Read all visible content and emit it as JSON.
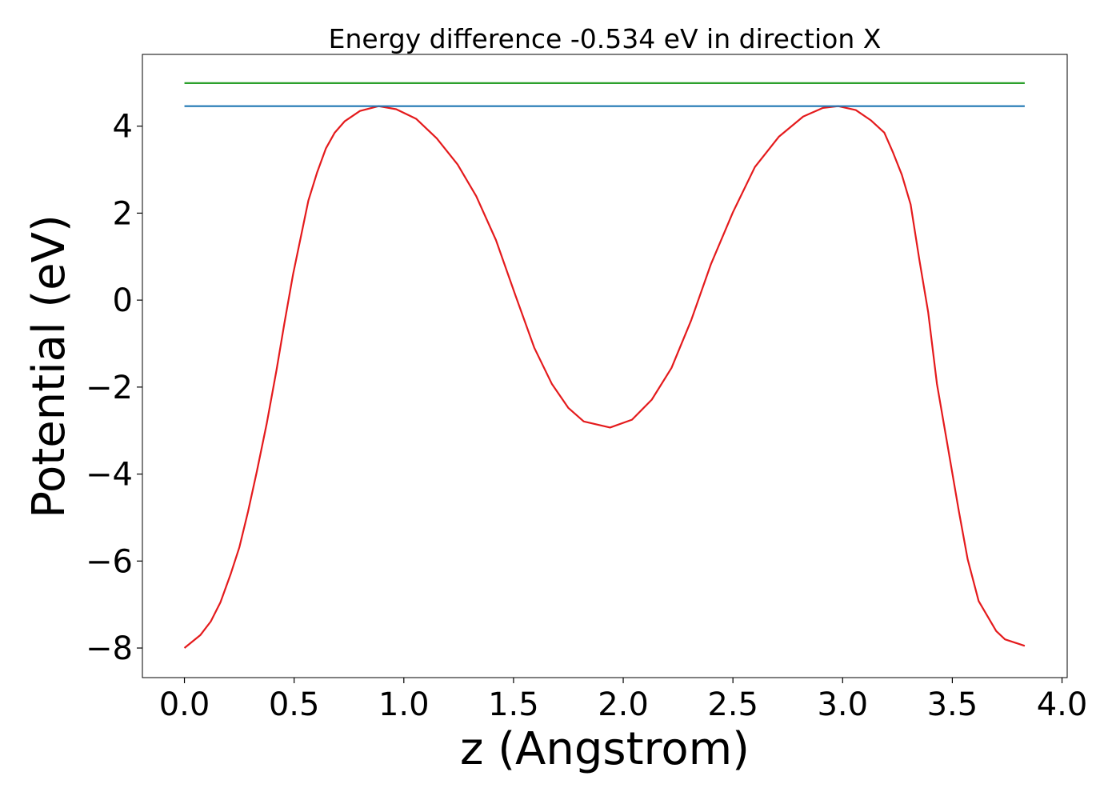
{
  "chart_data": {
    "type": "line",
    "title": "Energy difference -0.534 eV in direction X",
    "xlabel": "z (Angstrom)",
    "ylabel": "Potential (eV)",
    "xlim": [
      -0.1916,
      4.0236
    ],
    "ylim": [
      -8.68,
      5.65
    ],
    "xticks": [
      {
        "value": 0,
        "label": "0.0"
      },
      {
        "value": 0.5,
        "label": "0.5"
      },
      {
        "value": 1,
        "label": "1.0"
      },
      {
        "value": 1.5,
        "label": "1.5"
      },
      {
        "value": 2,
        "label": "2.0"
      },
      {
        "value": 2.5,
        "label": "2.5"
      },
      {
        "value": 3,
        "label": "3.0"
      },
      {
        "value": 3.5,
        "label": "3.5"
      },
      {
        "value": 4,
        "label": "4.0"
      }
    ],
    "yticks": [
      {
        "value": -8,
        "label": "−8"
      },
      {
        "value": -6,
        "label": "−6"
      },
      {
        "value": -4,
        "label": "−4"
      },
      {
        "value": -2,
        "label": "−2"
      },
      0,
      2,
      4
    ],
    "grid": false,
    "series": [
      {
        "color": "#e41a1c",
        "x": [
          0,
          0.073,
          0.12,
          0.164,
          0.21,
          0.25,
          0.29,
          0.33,
          0.375,
          0.42,
          0.455,
          0.495,
          0.565,
          0.605,
          0.645,
          0.685,
          0.73,
          0.8,
          0.885,
          0.965,
          1.056,
          1.15,
          1.245,
          1.33,
          1.42,
          1.51,
          1.595,
          1.675,
          1.75,
          1.82,
          1.94,
          2.04,
          2.13,
          2.22,
          2.31,
          2.4,
          2.5,
          2.6,
          2.71,
          2.82,
          2.91,
          2.98,
          3.06,
          3.13,
          3.19,
          3.23,
          3.27,
          3.31,
          3.35,
          3.39,
          3.43,
          3.48,
          3.53,
          3.57,
          3.62,
          3.7,
          3.74,
          3.83
        ],
        "values": [
          -8.0,
          -7.7,
          -7.39,
          -6.95,
          -6.31,
          -5.69,
          -4.86,
          -3.94,
          -2.84,
          -1.6,
          -0.55,
          0.59,
          2.29,
          2.94,
          3.49,
          3.85,
          4.11,
          4.35,
          4.46,
          4.39,
          4.17,
          3.72,
          3.12,
          2.39,
          1.38,
          0.09,
          -1.1,
          -1.93,
          -2.48,
          -2.79,
          -2.93,
          -2.75,
          -2.29,
          -1.56,
          -0.46,
          0.83,
          2.02,
          3.06,
          3.76,
          4.22,
          4.42,
          4.46,
          4.37,
          4.13,
          3.85,
          3.39,
          2.88,
          2.2,
          0.92,
          -0.28,
          -1.93,
          -3.39,
          -4.86,
          -5.96,
          -6.92,
          -7.61,
          -7.8,
          -7.95
        ]
      },
      {
        "color": "#1f77b4",
        "x": [
          0,
          3.83
        ],
        "values": [
          4.46,
          4.46
        ]
      },
      {
        "color": "#2ca02c",
        "x": [
          0,
          3.83
        ],
        "values": [
          4.99,
          4.99
        ]
      }
    ]
  }
}
